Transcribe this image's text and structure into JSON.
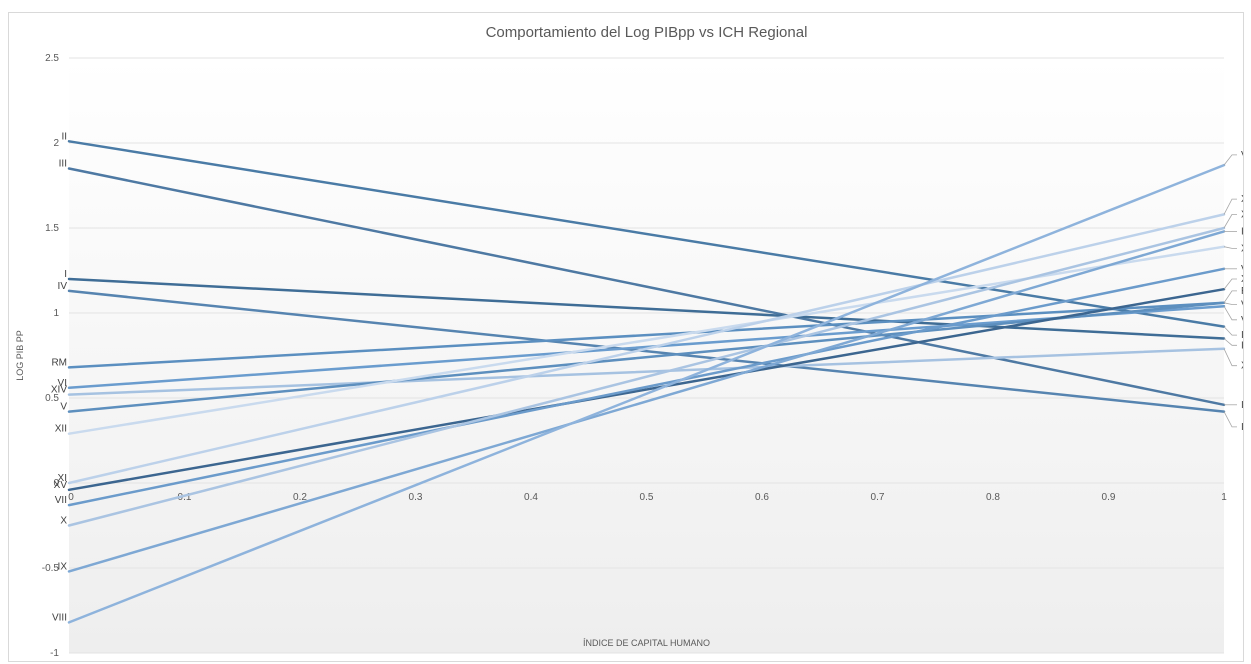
{
  "chart_data": {
    "type": "line",
    "title": "Comportamiento del Log PIBpp vs ICH Regional",
    "xlabel": "ÍNDICE DE CAPITAL HUMANO",
    "ylabel": "LOG PIB PP",
    "xlim": [
      0,
      1
    ],
    "ylim": [
      -1,
      2.5
    ],
    "x_ticks": [
      "0",
      "0.1",
      "0.2",
      "0.3",
      "0.4",
      "0.5",
      "0.6",
      "0.7",
      "0.8",
      "0.9",
      "1"
    ],
    "y_ticks": [
      "2.5",
      "2",
      "1.5",
      "1",
      "0.5",
      "0",
      "-0.5",
      "-1"
    ],
    "grid": true,
    "legend": "none",
    "x": [
      0,
      1
    ],
    "series": [
      {
        "name": "II",
        "values": [
          2.01,
          0.92
        ],
        "color": "#4a7ba6"
      },
      {
        "name": "III",
        "values": [
          1.85,
          0.46
        ],
        "color": "#4e79a3"
      },
      {
        "name": "I",
        "values": [
          1.2,
          0.85
        ],
        "color": "#3f6d96"
      },
      {
        "name": "IV",
        "values": [
          1.13,
          0.42
        ],
        "color": "#5684b0"
      },
      {
        "name": "RM",
        "values": [
          0.68,
          1.06
        ],
        "color": "#5b8fc0"
      },
      {
        "name": "VI",
        "values": [
          0.56,
          1.04
        ],
        "color": "#6a9cce"
      },
      {
        "name": "XIV",
        "values": [
          0.52,
          0.79
        ],
        "color": "#a6c2e1"
      },
      {
        "name": "V",
        "values": [
          0.42,
          1.06
        ],
        "color": "#5d8fbe"
      },
      {
        "name": "XII",
        "values": [
          0.29,
          1.39
        ],
        "color": "#c9daee"
      },
      {
        "name": "XI",
        "values": [
          0.0,
          1.58
        ],
        "color": "#bcd1ea"
      },
      {
        "name": "XV",
        "values": [
          -0.04,
          1.14
        ],
        "color": "#3c6690"
      },
      {
        "name": "VII",
        "values": [
          -0.13,
          1.26
        ],
        "color": "#6b9bcb"
      },
      {
        "name": "X",
        "values": [
          -0.25,
          1.5
        ],
        "color": "#aac4e2"
      },
      {
        "name": "IX",
        "values": [
          -0.52,
          1.48
        ],
        "color": "#7ea8d4"
      },
      {
        "name": "VIII",
        "values": [
          -0.82,
          1.87
        ],
        "color": "#8eb3dc"
      }
    ],
    "right_labels": [
      {
        "text": "VIII",
        "y": 1.93,
        "anchor": 1.87
      },
      {
        "text": "XI",
        "y": 1.67,
        "anchor": 1.58
      },
      {
        "text": "X",
        "y": 1.58,
        "anchor": 1.5
      },
      {
        "text": "IX",
        "y": 1.48,
        "anchor": 1.48
      },
      {
        "text": "XII",
        "y": 1.38,
        "anchor": 1.39
      },
      {
        "text": "VII",
        "y": 1.26,
        "anchor": 1.26
      },
      {
        "text": "XV",
        "y": 1.2,
        "anchor": 1.14
      },
      {
        "text": "RM",
        "y": 1.13,
        "anchor": 1.06
      },
      {
        "text": "V",
        "y": 1.05,
        "anchor": 1.06
      },
      {
        "text": "VI",
        "y": 0.96,
        "anchor": 1.04
      },
      {
        "text": "II",
        "y": 0.87,
        "anchor": 0.92
      },
      {
        "text": "I",
        "y": 0.81,
        "anchor": 0.85
      },
      {
        "text": "XIV",
        "y": 0.69,
        "anchor": 0.79
      },
      {
        "text": "III",
        "y": 0.46,
        "anchor": 0.46
      },
      {
        "text": "IV",
        "y": 0.33,
        "anchor": 0.42
      }
    ]
  }
}
